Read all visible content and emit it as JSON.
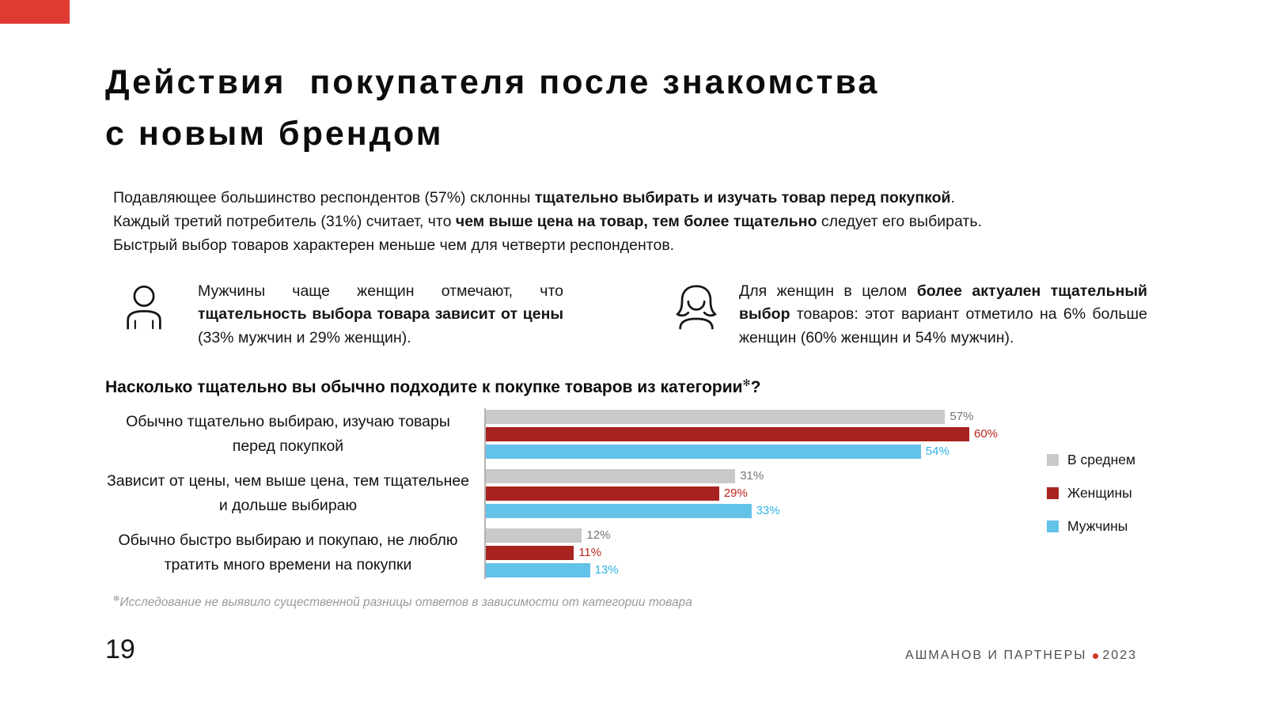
{
  "accent": {
    "red": "#e03a33",
    "dot_red": "#cf352c"
  },
  "slide": {
    "title_line1": "Действия  покупателя после знакомства",
    "title_line2": "с новым брендом",
    "page_number": "19",
    "footer": {
      "brand": "АШМАНОВ И ПАРТНЕРЫ",
      "year": "2023"
    }
  },
  "intro": {
    "lines": [
      {
        "pre": "Подавляющее большинство респондентов (57%) склонны ",
        "bold": "тщательно выбирать и изучать товар перед покупкой",
        "post": "."
      },
      {
        "pre": "Каждый третий потребитель (31%) считает, что ",
        "bold": "чем выше цена на товар, тем более тщательно",
        "post": " следует его выбирать."
      },
      {
        "pre": "Быстрый выбор товаров характерен меньше чем для четверти респондентов.",
        "bold": "",
        "post": ""
      }
    ]
  },
  "callouts": {
    "men": {
      "pre": "Мужчины чаще женщин отмечают, что ",
      "bold": "тщательность выбора товара зависит от цены",
      "post": " (33% мужчин и 29% женщин)."
    },
    "women": {
      "pre": "Для женщин в целом ",
      "bold": "более актуален тщательный выбор",
      "post": " товаров: этот вариант отметило на 6% больше женщин (60% женщин и 54% мужчин)."
    }
  },
  "chart_data": {
    "type": "bar",
    "orientation": "horizontal",
    "title": "Насколько тщательно вы обычно подходите к покупке товаров из категории✻?",
    "title_main": "Насколько тщательно вы обычно подходите к покупке товаров из категории",
    "title_marker": "✻",
    "title_question": "?",
    "categories": [
      "Обычно тщательно выбираю, изучаю товары перед покупкой",
      "Зависит от цены, чем выше цена, тем тщательнее и дольше выбираю",
      "Обычно быстро выбираю и покупаю, не люблю тратить много времени на покупки"
    ],
    "series": [
      {
        "name": "В среднем",
        "color": "#c9c9c9",
        "value_label_color": "#757575",
        "values": [
          57,
          31,
          12
        ],
        "labels": [
          "57%",
          "31%",
          "12%"
        ]
      },
      {
        "name": "Женщины",
        "color": "#a8231f",
        "value_label_color": "#c0241e",
        "values": [
          60,
          29,
          11
        ],
        "labels": [
          "60%",
          "29%",
          "11%"
        ]
      },
      {
        "name": "Мужчины",
        "color": "#62c2e8",
        "value_label_color": "#2fb3e2",
        "values": [
          54,
          33,
          13
        ],
        "labels": [
          "54%",
          "33%",
          "13%"
        ]
      }
    ],
    "value_suffix": "%",
    "xlim": [
      0,
      65
    ],
    "gridlines": false,
    "legend_position": "right"
  },
  "footnote": {
    "marker": "✻",
    "text": "Исследование не выявило существенной разницы ответов в зависимости от категории товара"
  }
}
